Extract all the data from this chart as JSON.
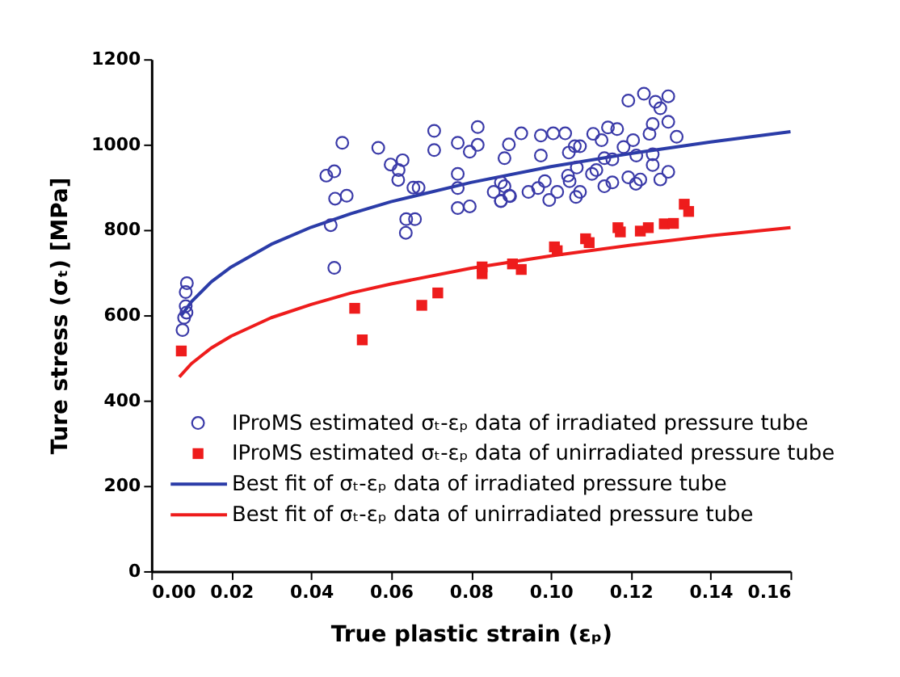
{
  "chart_data": {
    "type": "scatter",
    "xlabel": "True plastic strain (εₚ)",
    "ylabel": "Ture stress (σₜ) [MPa]",
    "xlim": [
      0,
      0.16
    ],
    "ylim": [
      0,
      1200
    ],
    "xticks": [
      {
        "value": 0,
        "label": "0.00"
      },
      {
        "value": 0.02,
        "label": "0.02"
      },
      {
        "value": 0.04,
        "label": "0.04"
      },
      {
        "value": 0.06,
        "label": "0.06"
      },
      {
        "value": 0.08,
        "label": "0.08"
      },
      {
        "value": 0.1,
        "label": "0.10"
      },
      {
        "value": 0.12,
        "label": "0.12"
      },
      {
        "value": 0.14,
        "label": "0.14"
      },
      {
        "value": 0.16,
        "label": "0.16"
      }
    ],
    "yticks": [
      0,
      200,
      400,
      600,
      800,
      1000,
      1200
    ],
    "grid": false,
    "legend": "bottom",
    "series": [
      {
        "name": "IProMS estimated σₜ-εₚ data of irradiated pressure tube",
        "marker": "circle",
        "color": "#3a3aa8",
        "x": [
          0.0078,
          0.0082,
          0.0086,
          0.0086,
          0.0089,
          0.0088,
          0.0438,
          0.0458,
          0.0478,
          0.046,
          0.0489,
          0.0449,
          0.0458,
          0.0568,
          0.0599,
          0.0629,
          0.0619,
          0.0618,
          0.0656,
          0.0669,
          0.0638,
          0.066,
          0.0637,
          0.0708,
          0.0708,
          0.0767,
          0.0817,
          0.0817,
          0.0797,
          0.0767,
          0.0767,
          0.0767,
          0.0797,
          0.0857,
          0.0875,
          0.0884,
          0.0896,
          0.0875,
          0.0895,
          0.0884,
          0.0926,
          0.0975,
          0.1006,
          0.1036,
          0.0975,
          0.1045,
          0.1073,
          0.1106,
          0.1143,
          0.1166,
          0.1194,
          0.1233,
          0.1262,
          0.1274,
          0.1294,
          0.1294,
          0.1315,
          0.1255,
          0.1247,
          0.1206,
          0.1182,
          0.1127,
          0.106,
          0.1134,
          0.1154,
          0.1214,
          0.1255,
          0.1255,
          0.1103,
          0.1114,
          0.1065,
          0.1043,
          0.1047,
          0.0985,
          0.0968,
          0.0944,
          0.1016,
          0.0996,
          0.1073,
          0.1063,
          0.1134,
          0.1154,
          0.1194,
          0.1213,
          0.1224,
          0.1274,
          0.1294,
          0.0875,
          0.0898
        ],
        "values": [
          565,
          594,
          621,
          654,
          675,
          606,
          927,
          937,
          1004,
          873,
          880,
          811,
          711,
          992,
          953,
          963,
          940,
          917,
          899,
          899,
          825,
          825,
          793,
          1032,
          987,
          1004,
          1041,
          999,
          983,
          931,
          898,
          851,
          855,
          889,
          911,
          902,
          880,
          868,
          1000,
          968,
          1026,
          1021,
          1026,
          1026,
          974,
          981,
          996,
          1025,
          1040,
          1036,
          1103,
          1119,
          1100,
          1085,
          1113,
          1053,
          1018,
          1048,
          1025,
          1010,
          994,
          1010,
          996,
          968,
          965,
          974,
          977,
          952,
          931,
          940,
          946,
          927,
          914,
          914,
          898,
          889,
          889,
          870,
          889,
          877,
          902,
          911,
          923,
          908,
          918,
          918,
          936,
          867,
          879
        ]
      },
      {
        "name": "IProMS estimated σₜ-εₚ data of unirradiated pressure tube",
        "marker": "square",
        "color": "#ee1c1c",
        "x": [
          0.0075,
          0.0509,
          0.0528,
          0.0677,
          0.0717,
          0.0828,
          0.0828,
          0.0904,
          0.0926,
          0.1009,
          0.1016,
          0.1087,
          0.1096,
          0.1168,
          0.1174,
          0.1224,
          0.1244,
          0.1284,
          0.1307,
          0.1334,
          0.1345
        ],
        "values": [
          516,
          616,
          542,
          623,
          652,
          713,
          697,
          720,
          707,
          760,
          751,
          779,
          770,
          805,
          795,
          797,
          805,
          814,
          815,
          860,
          843
        ]
      },
      {
        "name": "Best fit of σₜ-εₚ data of irradiated pressure tube",
        "type": "line",
        "color": "#2b3ca8",
        "x": [
          0.0075,
          0.01,
          0.015,
          0.02,
          0.03,
          0.04,
          0.05,
          0.06,
          0.08,
          0.1,
          0.12,
          0.14,
          0.16
        ],
        "values": [
          599,
          631,
          678,
          713,
          766,
          806,
          838,
          866,
          911,
          948,
          979,
          1006,
          1030
        ]
      },
      {
        "name": "Best fit of σₜ-εₚ data of unirradiated pressure tube",
        "type": "line",
        "color": "#ee1c1c",
        "x": [
          0.007,
          0.01,
          0.015,
          0.02,
          0.03,
          0.04,
          0.05,
          0.06,
          0.08,
          0.1,
          0.12,
          0.14,
          0.16
        ],
        "values": [
          455,
          486,
          523,
          551,
          594,
          625,
          652,
          673,
          710,
          739,
          764,
          786,
          805
        ]
      }
    ]
  }
}
